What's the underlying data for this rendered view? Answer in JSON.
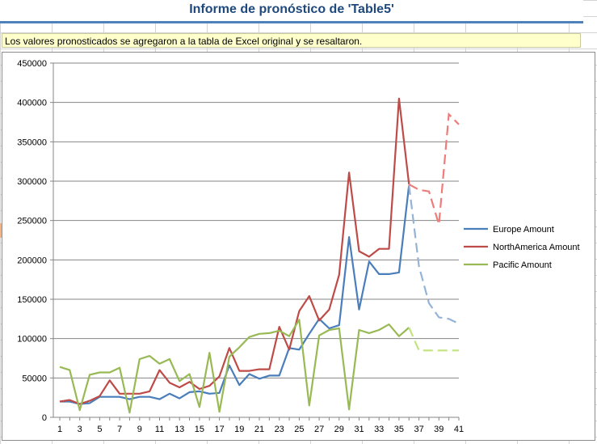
{
  "header": {
    "title": "Informe de pronóstico de 'Table5'"
  },
  "note": {
    "text": "Los valores pronosticados se agregaron a la tabla de Excel original y se resaltaron."
  },
  "chart_data": {
    "type": "line",
    "title": "",
    "xlabel": "",
    "ylabel": "",
    "ylim": [
      0,
      450000
    ],
    "yticks": [
      "0",
      "50000",
      "100000",
      "150000",
      "200000",
      "250000",
      "300000",
      "350000",
      "400000",
      "450000"
    ],
    "xticks": [
      "1",
      "3",
      "5",
      "7",
      "9",
      "11",
      "13",
      "15",
      "17",
      "19",
      "21",
      "23",
      "25",
      "27",
      "29",
      "31",
      "33",
      "35",
      "37",
      "39",
      "41"
    ],
    "x": [
      1,
      2,
      3,
      4,
      5,
      6,
      7,
      8,
      9,
      10,
      11,
      12,
      13,
      14,
      15,
      16,
      17,
      18,
      19,
      20,
      21,
      22,
      23,
      24,
      25,
      26,
      27,
      28,
      29,
      30,
      31,
      32,
      33,
      34,
      35,
      36,
      37,
      38,
      39,
      40,
      41
    ],
    "grid": true,
    "legend_position": "right",
    "forecast_start_x": 36,
    "series": [
      {
        "name": "Europe Amount",
        "color": "#4a7ebb",
        "forecast_color": "#95b3d7",
        "values": [
          20000,
          20000,
          17000,
          18000,
          26000,
          26000,
          26000,
          23000,
          26000,
          26000,
          23000,
          30000,
          24000,
          32000,
          33000,
          30000,
          31000,
          66000,
          41000,
          55000,
          49000,
          53000,
          53000,
          88000,
          86000,
          106000,
          125000,
          113000,
          117000,
          229000,
          137000,
          198000,
          182000,
          182000,
          184000,
          295000,
          192000,
          145000,
          127000,
          125000,
          119000
        ]
      },
      {
        "name": "NorthAmerica Amount",
        "color": "#be4b48",
        "forecast_color": "#ee7c7a",
        "values": [
          20000,
          22000,
          17000,
          21000,
          27000,
          47000,
          30000,
          30000,
          30000,
          33000,
          60000,
          44000,
          38000,
          45000,
          36000,
          40000,
          52000,
          88000,
          59000,
          59000,
          61000,
          61000,
          115000,
          86000,
          135000,
          154000,
          123000,
          137000,
          181000,
          311000,
          211000,
          204000,
          214000,
          214000,
          405000,
          296000,
          289000,
          287000,
          245000,
          385000,
          372000
        ]
      },
      {
        "name": "Pacific Amount",
        "color": "#98b954",
        "forecast_color": "#c3e37e",
        "values": [
          64000,
          60000,
          9000,
          54000,
          57000,
          57000,
          63000,
          6000,
          74000,
          78000,
          68000,
          74000,
          46000,
          55000,
          13000,
          82000,
          7000,
          77000,
          89000,
          102000,
          106000,
          107000,
          110000,
          103000,
          124000,
          15000,
          104000,
          111000,
          113000,
          10000,
          111000,
          107000,
          111000,
          118000,
          103000,
          114000,
          85000,
          85000,
          85000,
          85000,
          85000
        ]
      }
    ]
  }
}
